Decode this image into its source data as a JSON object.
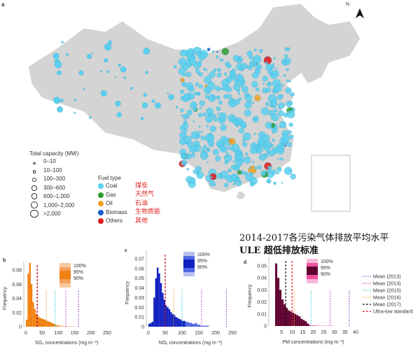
{
  "panel_labels": {
    "a": "a",
    "b": "b",
    "c": "c",
    "d": "d"
  },
  "north": "N",
  "overlay_title": {
    "line1": "2014-2017各污染气体排放平均水平",
    "line2": "ULE 超低排放标准"
  },
  "capacity_legend": {
    "title": "Total capacity (MW)",
    "items": [
      "0–10",
      "10–100",
      "100–300",
      "300–600",
      "600–1,000",
      "1,000–2,000",
      ">2,000"
    ]
  },
  "fuel_legend": {
    "title": "Fuel type",
    "items": [
      {
        "label": "Coal",
        "cn": "煤炭",
        "color": "#5bd0f0"
      },
      {
        "label": "Gas",
        "cn": "天然气",
        "color": "#2e9a2e"
      },
      {
        "label": "Oil",
        "cn": "石油",
        "color": "#f0a020"
      },
      {
        "label": "Biomass",
        "cn": "生物质能",
        "color": "#1a5ad0"
      },
      {
        "label": "Others",
        "cn": "其他",
        "color": "#e01818"
      }
    ]
  },
  "mean_legend": [
    "Mean (2013)",
    "Mean (2014)",
    "Mean (2015)",
    "Mean (2016)",
    "Mean (2017)",
    "Ultra-low standard"
  ],
  "mean_colors": [
    "#8a40c8",
    "#d040c0",
    "#30d0d0",
    "#f0a030",
    "#111111",
    "#e02030"
  ],
  "chart_data": [
    {
      "type": "bar",
      "panel": "b",
      "xlabel": "SO₂ concentrations (mg m⁻³)",
      "ylabel": "Frequency",
      "xlim": [
        0,
        250
      ],
      "ylim": [
        0,
        0.095
      ],
      "xticks": [
        0,
        50,
        100,
        150,
        200,
        250
      ],
      "yticks": [
        0,
        0.02,
        0.04,
        0.06,
        0.08
      ],
      "bin_width": 5,
      "color": "#f08010",
      "band_colors": [
        "#f8c8a0",
        "#f4a060",
        "#f08010"
      ],
      "band_labels": [
        "100%",
        "95%",
        "90%"
      ],
      "values": [
        0.01,
        0.075,
        0.09,
        0.06,
        0.035,
        0.025,
        0.018,
        0.015,
        0.013,
        0.012,
        0.011,
        0.01,
        0.009,
        0.008,
        0.007,
        0.006,
        0.005,
        0.004,
        0.003,
        0.002,
        0.002,
        0.001,
        0.001,
        0.001,
        0.001,
        0.0005,
        0.0005,
        0.0005,
        0.0005,
        0.0005
      ],
      "means": [
        162,
        123,
        90,
        63,
        35,
        35
      ]
    },
    {
      "type": "bar",
      "panel": "c",
      "xlabel": "NOₓ concentrations (mg m⁻³)",
      "ylabel": "Frequency",
      "xlim": [
        0,
        250
      ],
      "ylim": [
        0,
        0.07
      ],
      "xticks": [
        0,
        50,
        100,
        150,
        200,
        250
      ],
      "yticks": [
        0,
        0.01,
        0.02,
        0.03,
        0.04,
        0.05,
        0.06,
        0.07
      ],
      "bin_width": 5,
      "color": "#1020c0",
      "band_colors": [
        "#b8c0f0",
        "#5068e0",
        "#1020c0"
      ],
      "band_labels": [
        "100%",
        "95%",
        "90%"
      ],
      "values": [
        0.003,
        0.004,
        0.005,
        0.03,
        0.05,
        0.061,
        0.055,
        0.045,
        0.035,
        0.028,
        0.022,
        0.02,
        0.018,
        0.015,
        0.013,
        0.012,
        0.01,
        0.009,
        0.008,
        0.007,
        0.006,
        0.006,
        0.005,
        0.005,
        0.004,
        0.004,
        0.003,
        0.003,
        0.004,
        0.002,
        0.002,
        0.001,
        0.001,
        0.001,
        0.001,
        0.001
      ],
      "means": [
        232,
        158,
        100,
        75,
        50,
        50
      ]
    },
    {
      "type": "bar",
      "panel": "d",
      "xlabel": "PM concentrations (mg m⁻³)",
      "ylabel": "Frequency",
      "xlim": [
        0,
        40
      ],
      "ylim": [
        0,
        0.055
      ],
      "xticks": [
        5,
        10,
        15,
        20,
        25,
        30,
        35,
        40
      ],
      "yticks": [
        0,
        0.01,
        0.02,
        0.03,
        0.04,
        0.05
      ],
      "bin_width": 1,
      "color": "#600030",
      "band_colors": [
        "#f8b8d8",
        "#f050a0",
        "#600030"
      ],
      "band_labels": [
        "100%",
        "95%",
        "90%"
      ],
      "values": [
        0,
        0,
        0.052,
        0.04,
        0.03,
        0.022,
        0.018,
        0.015,
        0.013,
        0.012,
        0.011,
        0.01,
        0.009,
        0.008,
        0.006,
        0.005,
        0.004,
        0.002,
        0.001,
        0.0005,
        0.0005,
        0.0003,
        0.0003,
        0.0003,
        0.0002,
        0.0002,
        0.0002,
        0.0002,
        0.0002,
        0.0001
      ],
      "means": [
        37,
        28,
        19,
        11,
        7,
        10
      ]
    }
  ]
}
